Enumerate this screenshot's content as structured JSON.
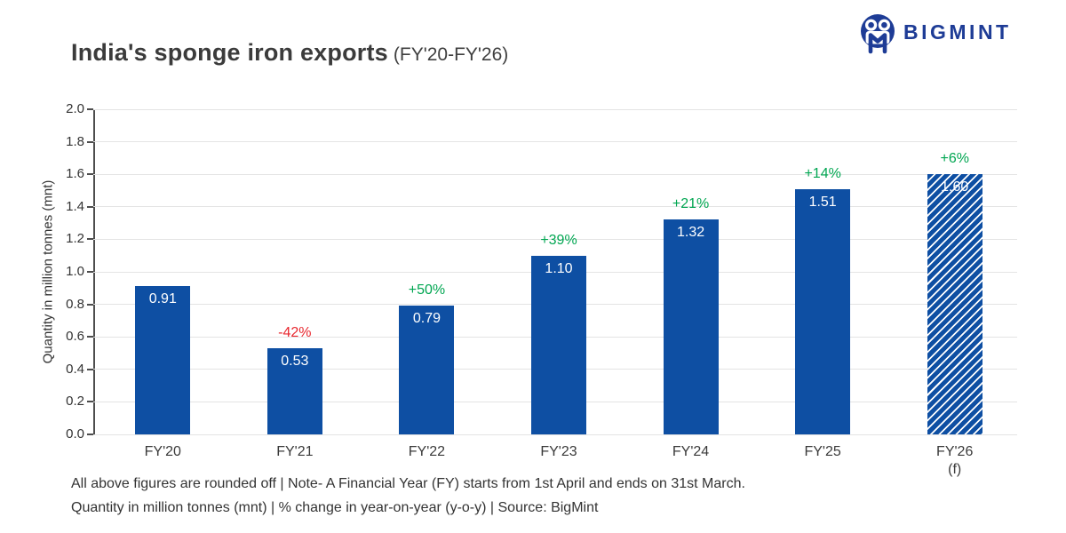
{
  "header": {
    "title": "India's sponge iron exports",
    "title_suffix": "(FY'20-FY'26)",
    "logo_text": "BIGMINT"
  },
  "chart_data": {
    "type": "bar",
    "title": "India's sponge iron exports (FY'20-FY'26)",
    "xlabel": "",
    "ylabel": "Quantity in million tonnes (mnt)",
    "ylim": [
      0,
      2.0
    ],
    "ytick_step": 0.2,
    "grid": true,
    "legend_position": "none",
    "categories": [
      "FY'20",
      "FY'21",
      "FY'22",
      "FY'23",
      "FY'24",
      "FY'25",
      "FY'26"
    ],
    "category_sublabels": [
      "",
      "",
      "",
      "",
      "",
      "",
      "(f)"
    ],
    "values": [
      0.91,
      0.53,
      0.79,
      1.1,
      1.32,
      1.51,
      1.6
    ],
    "value_labels": [
      "0.91",
      "0.53",
      "0.79",
      "1.10",
      "1.32",
      "1.51",
      "1.60"
    ],
    "pct_change_labels": [
      "",
      "-42%",
      "+50%",
      "+39%",
      "+21%",
      "+14%",
      "+6%"
    ],
    "forecast_flags": [
      false,
      false,
      false,
      false,
      false,
      false,
      true
    ],
    "bar_color": "#0e4fa3",
    "positive_color": "#00a651",
    "negative_color": "#e8282f"
  },
  "footnotes": {
    "line1": "All above figures are rounded off | Note- A Financial Year (FY) starts from 1st April and ends on 31st March.",
    "line2": "Quantity in million tonnes (mnt) | % change in year-on-year (y-o-y) | Source: BigMint"
  }
}
